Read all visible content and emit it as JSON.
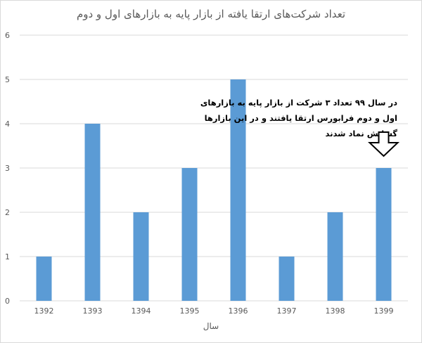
{
  "chart_data": {
    "type": "bar",
    "title": "تعداد شرکت‌های ارتقا یافته از بازار پایه به بازارهای اول و دوم",
    "xlabel": "سال",
    "ylabel": "",
    "categories": [
      "1392",
      "1393",
      "1394",
      "1395",
      "1396",
      "1397",
      "1398",
      "1399"
    ],
    "values": [
      1,
      4,
      2,
      3,
      5,
      1,
      2,
      3
    ],
    "ylim": [
      0,
      6
    ],
    "yticks": [
      0,
      1,
      2,
      3,
      4,
      5,
      6
    ],
    "grid": true,
    "legend": "none",
    "bar_color": "#5b9bd5",
    "annotation": {
      "lines": [
        "در سال ۹۹ تعداد ۳ شرکت از بازار پایه به بازارهای",
        "اول و دوم فرابورس ارتقا یافتند و در این بازارها",
        "گشایش نماد شدند"
      ],
      "arrow_target_category": "1399",
      "arrow_direction": "down"
    }
  },
  "colors": {
    "bar": "#5b9bd5",
    "grid": "#d9d9d9",
    "text": "#595959",
    "annotation_text": "#000000"
  }
}
